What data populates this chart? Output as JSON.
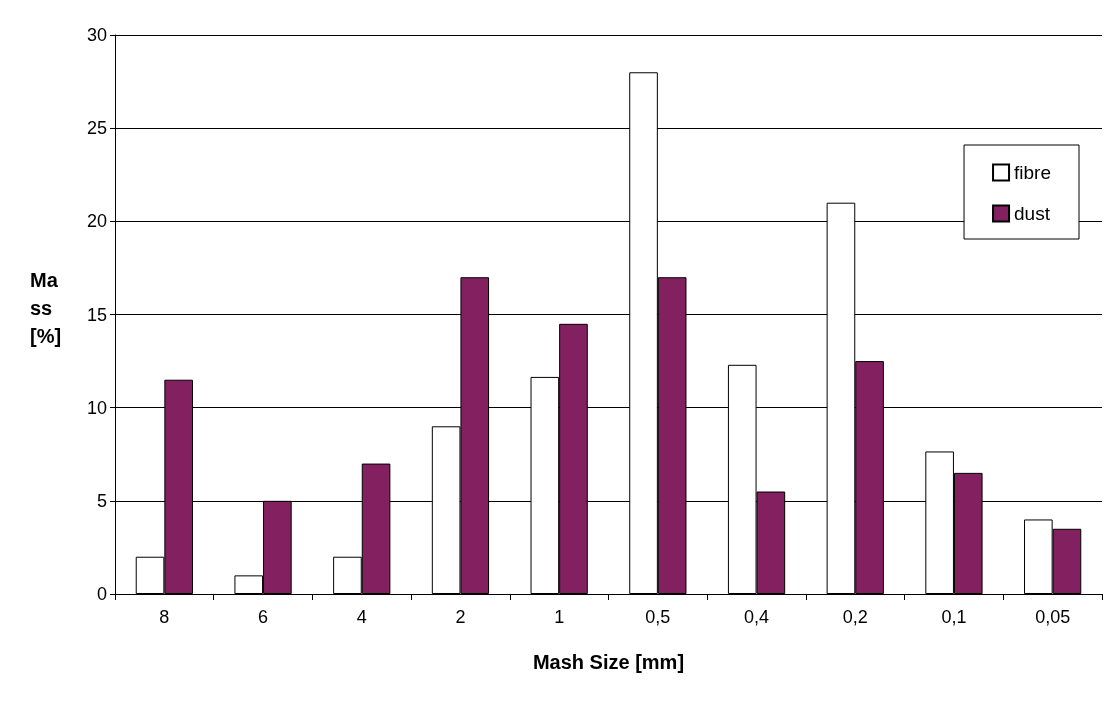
{
  "chart_data": {
    "type": "bar",
    "xlabel": "Mash Size [mm]",
    "ylabel": "Mass [%]",
    "categories": [
      "8",
      "6",
      "4",
      "2",
      "1",
      "0,5",
      "0,4",
      "0,2",
      "0,1",
      "0,05"
    ],
    "series": [
      {
        "name": "fibre",
        "color": "#ffffff",
        "values": [
          2,
          1,
          2,
          9,
          11.65,
          28,
          12.3,
          21,
          7.65,
          4
        ]
      },
      {
        "name": "dust",
        "color": "#832060",
        "values": [
          11.5,
          5,
          7,
          17,
          14.5,
          17,
          5.5,
          12.5,
          6.5,
          3.5
        ]
      }
    ],
    "ylim": [
      0,
      30
    ],
    "yticks": [
      0,
      5,
      10,
      15,
      20,
      25,
      30
    ],
    "grid": "y",
    "legend": "top right"
  }
}
